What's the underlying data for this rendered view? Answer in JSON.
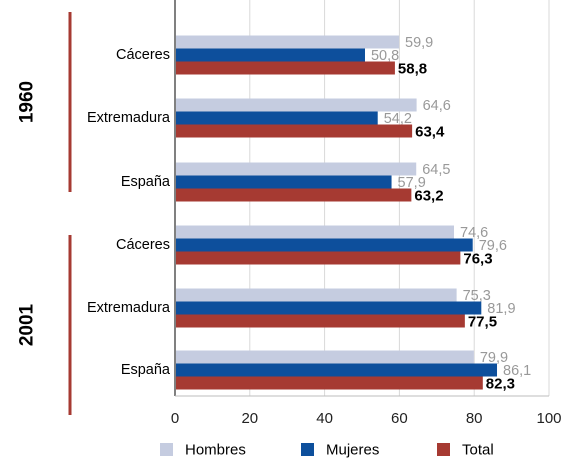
{
  "chart_data": {
    "type": "bar",
    "orientation": "horizontal",
    "title": "",
    "xlabel": "",
    "ylabel": "",
    "xlim": [
      0,
      100
    ],
    "xticks": [
      0,
      20,
      40,
      60,
      80,
      100
    ],
    "grid": true,
    "legend_position": "bottom",
    "groups": [
      {
        "label": "1960",
        "categories": [
          "Cáceres",
          "Extremadura",
          "España"
        ],
        "labels": [
          {
            "hombres": "59,9",
            "mujeres": "50,8",
            "total": "58,8"
          },
          {
            "hombres": "64,6",
            "mujeres": "54,2",
            "total": "63,4"
          },
          {
            "hombres": "64,5",
            "mujeres": "57,9",
            "total": "63,2"
          }
        ]
      },
      {
        "label": "2001",
        "categories": [
          "Cáceres",
          "Extremadura",
          "España"
        ],
        "labels": [
          {
            "hombres": "74,6",
            "mujeres": "79,6",
            "total": "76,3"
          },
          {
            "hombres": "75,3",
            "mujeres": "81,9",
            "total": "77,5"
          },
          {
            "hombres": "79,9",
            "mujeres": "86,1",
            "total": "82,3"
          }
        ]
      }
    ],
    "series": [
      {
        "key": "hombres",
        "name": "Hombres",
        "color": "#c5cce0",
        "values": [
          59.9,
          64.6,
          64.5,
          74.6,
          75.3,
          79.9
        ]
      },
      {
        "key": "mujeres",
        "name": "Mujeres",
        "color": "#0d4f9c",
        "values": [
          50.8,
          54.2,
          57.9,
          79.6,
          81.9,
          86.1
        ]
      },
      {
        "key": "total",
        "name": "Total",
        "color": "#a63a32",
        "values": [
          58.8,
          63.4,
          63.2,
          76.3,
          77.5,
          82.3
        ]
      }
    ],
    "colors": {
      "group_bar": "#a63a32",
      "grid": "#d9d9d9",
      "axis": "#000000",
      "label_muted": "#999999",
      "label_strong": "#000000"
    }
  }
}
